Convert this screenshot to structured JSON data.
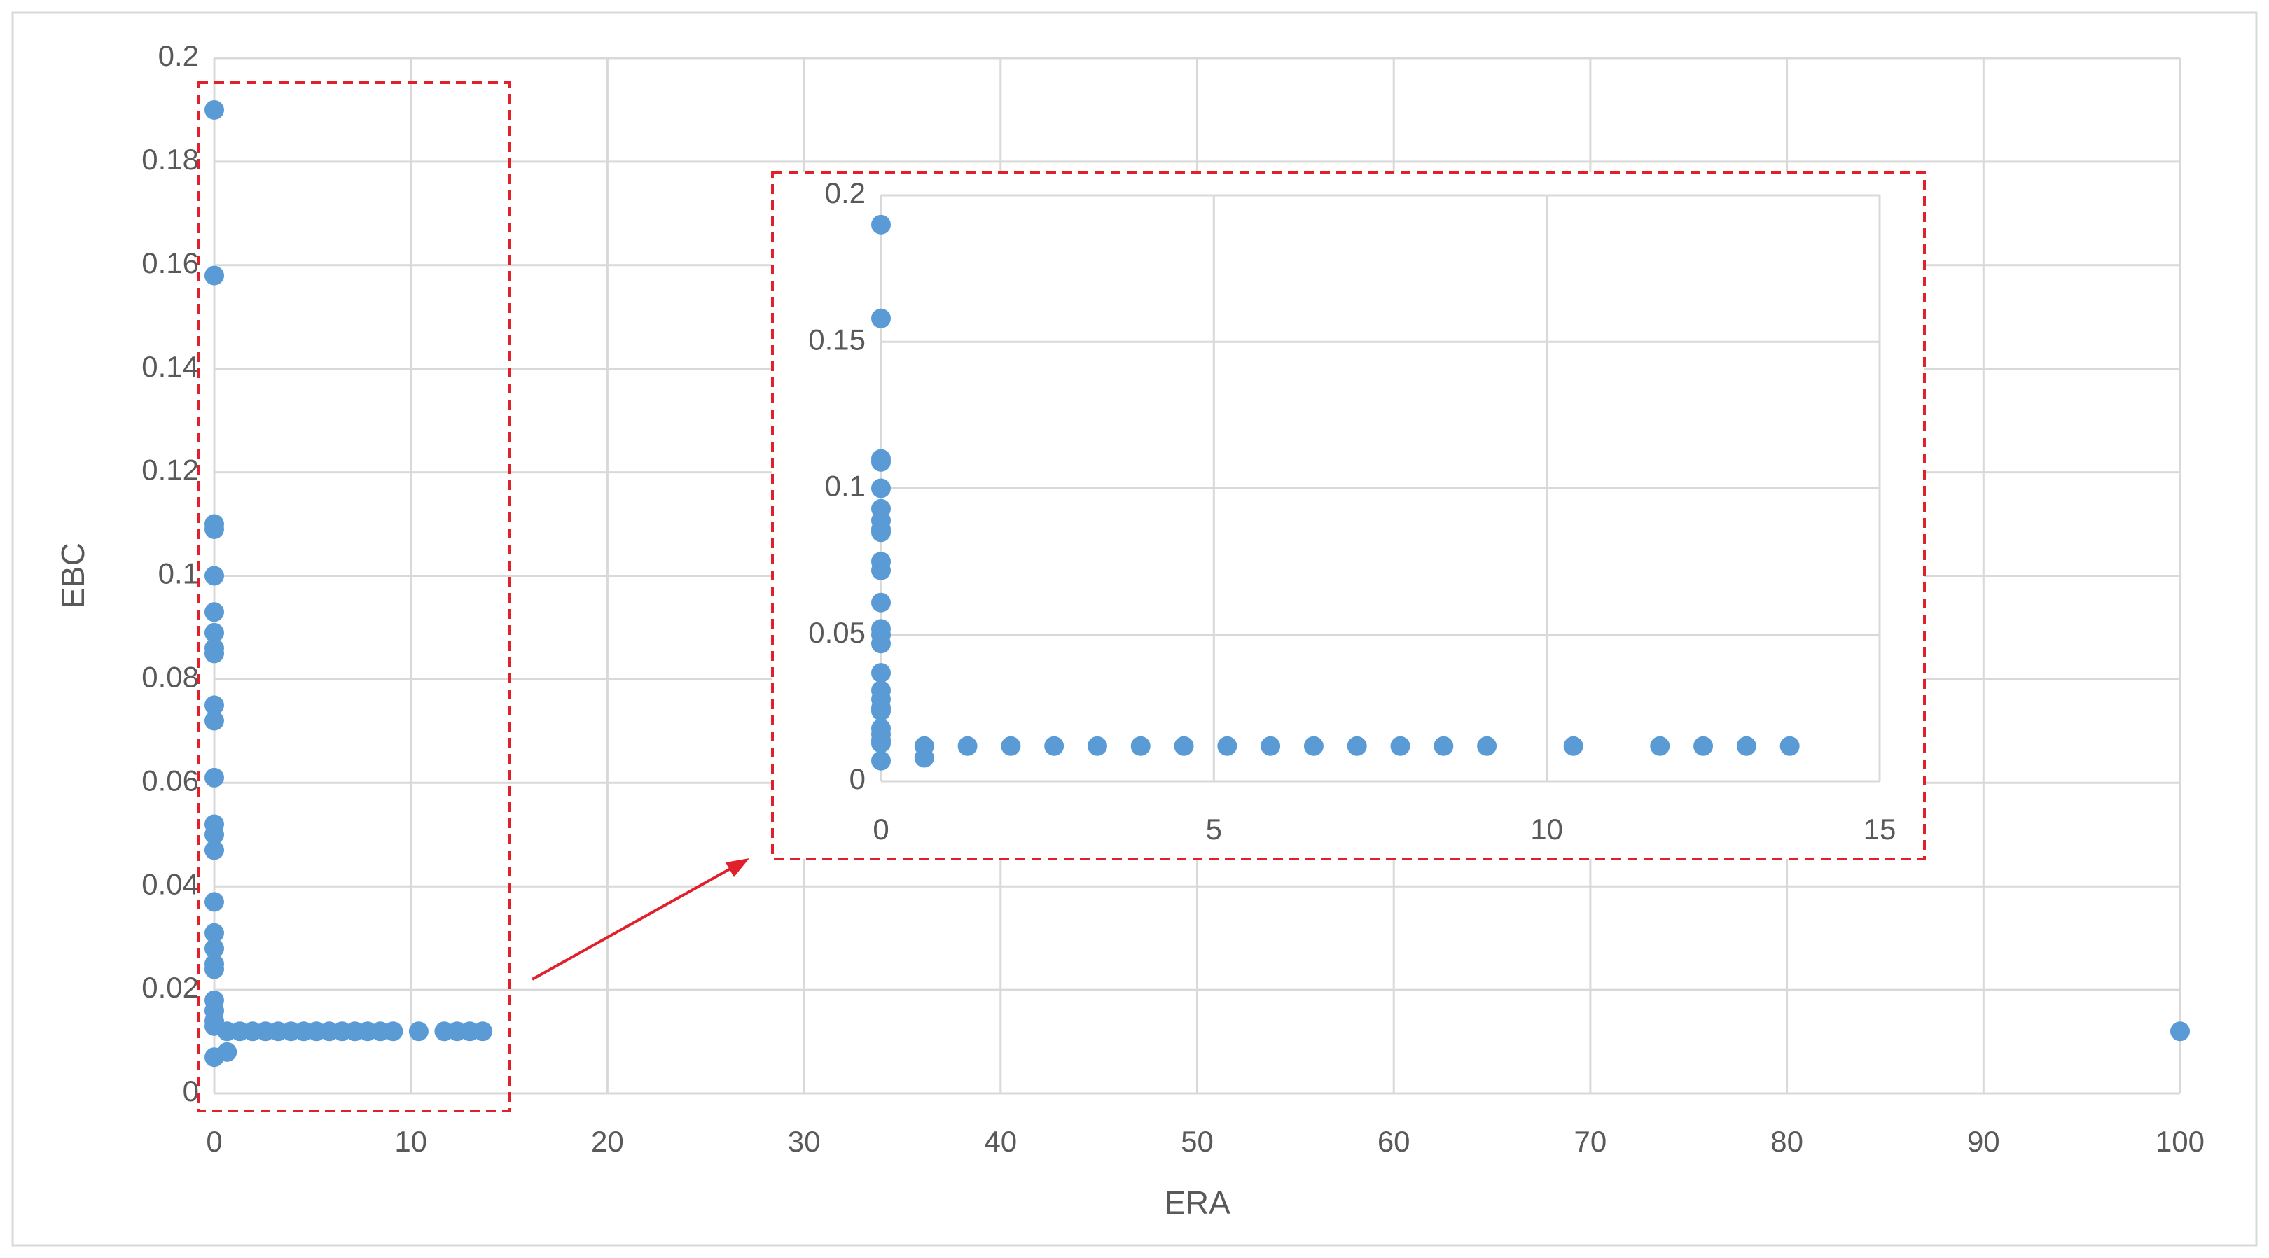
{
  "chart_data": [
    {
      "type": "scatter",
      "x_label": "ERA",
      "y_label": "EBC",
      "color": "#5b9bd5",
      "grid": true,
      "xlim": [
        0,
        100
      ],
      "xticks": [
        0,
        10,
        20,
        30,
        40,
        50,
        60,
        70,
        80,
        90,
        100
      ],
      "ylim": [
        0,
        0.2
      ],
      "yticks": [
        0,
        0.02,
        0.04,
        0.06,
        0.08,
        0.1,
        0.12,
        0.14,
        0.16,
        0.18,
        0.2
      ],
      "x": [
        0,
        0,
        0,
        0,
        0,
        0,
        0,
        0,
        0,
        0,
        0,
        0,
        0,
        0,
        0,
        0,
        0,
        0,
        0,
        0,
        0,
        0,
        0,
        0,
        0,
        0.65,
        0.65,
        1.3,
        1.95,
        2.6,
        3.25,
        3.9,
        4.55,
        5.2,
        5.85,
        6.5,
        7.15,
        7.8,
        8.45,
        9.1,
        10.4,
        11.7,
        12.35,
        13,
        13.65,
        100
      ],
      "y": [
        0.19,
        0.158,
        0.11,
        0.109,
        0.1,
        0.093,
        0.089,
        0.086,
        0.085,
        0.075,
        0.072,
        0.061,
        0.052,
        0.05,
        0.047,
        0.037,
        0.031,
        0.028,
        0.025,
        0.024,
        0.018,
        0.016,
        0.014,
        0.013,
        0.007,
        0.008,
        0.012,
        0.012,
        0.012,
        0.012,
        0.012,
        0.012,
        0.012,
        0.012,
        0.012,
        0.012,
        0.012,
        0.012,
        0.012,
        0.012,
        0.012,
        0.012,
        0.012,
        0.012,
        0.012,
        0.012
      ]
    },
    {
      "type": "scatter",
      "color": "#5b9bd5",
      "grid": true,
      "xlim": [
        0,
        15
      ],
      "xticks": [
        0,
        5,
        10,
        15
      ],
      "ylim": [
        0,
        0.2
      ],
      "yticks": [
        0,
        0.05,
        0.1,
        0.15,
        0.2
      ],
      "x": [
        0,
        0,
        0,
        0,
        0,
        0,
        0,
        0,
        0,
        0,
        0,
        0,
        0,
        0,
        0,
        0,
        0,
        0,
        0,
        0,
        0,
        0,
        0,
        0,
        0,
        0.65,
        0.65,
        1.3,
        1.95,
        2.6,
        3.25,
        3.9,
        4.55,
        5.2,
        5.85,
        6.5,
        7.15,
        7.8,
        8.45,
        9.1,
        10.4,
        11.7,
        12.35,
        13,
        13.65
      ],
      "y": [
        0.19,
        0.158,
        0.11,
        0.109,
        0.1,
        0.093,
        0.089,
        0.086,
        0.085,
        0.075,
        0.072,
        0.061,
        0.052,
        0.05,
        0.047,
        0.037,
        0.031,
        0.028,
        0.025,
        0.024,
        0.018,
        0.016,
        0.014,
        0.013,
        0.007,
        0.008,
        0.012,
        0.012,
        0.012,
        0.012,
        0.012,
        0.012,
        0.012,
        0.012,
        0.012,
        0.012,
        0.012,
        0.012,
        0.012,
        0.012,
        0.012,
        0.012,
        0.012,
        0.012,
        0.012
      ]
    }
  ]
}
